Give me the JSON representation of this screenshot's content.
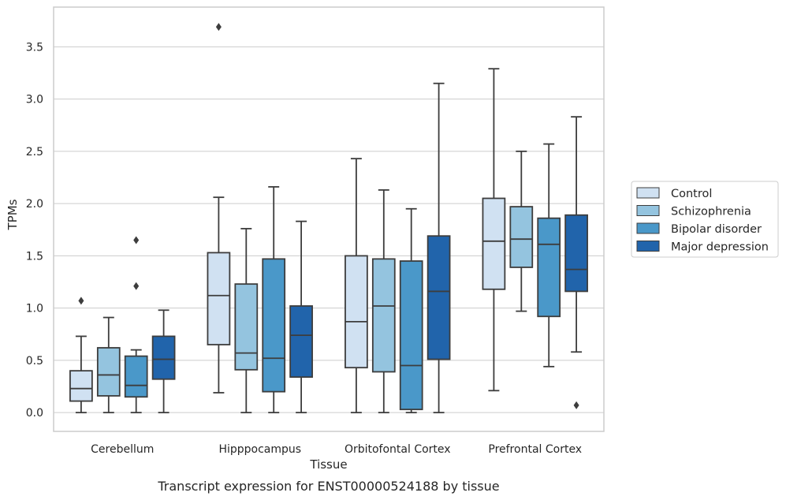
{
  "caption": "Transcript expression for ENST00000524188 by tissue",
  "chart_data": {
    "type": "box",
    "xlabel": "Tissue",
    "ylabel": "TPMs",
    "ylim": [
      -0.18,
      3.88
    ],
    "yticks": [
      "0.0",
      "0.5",
      "1.0",
      "1.5",
      "2.0",
      "2.5",
      "3.0",
      "3.5"
    ],
    "grid": "horizontal",
    "legend_position": "right",
    "categories": [
      "Cerebellum",
      "Hipppocampus",
      "Orbitofontal Cortex",
      "Prefrontal Cortex"
    ],
    "series": [
      {
        "name": "Control",
        "color": "#d0e1f2",
        "boxes": [
          {
            "whisker_low": 0.0,
            "q1": 0.11,
            "median": 0.23,
            "q3": 0.4,
            "whisker_high": 0.73,
            "outliers": [
              1.07
            ]
          },
          {
            "whisker_low": 0.19,
            "q1": 0.65,
            "median": 1.12,
            "q3": 1.53,
            "whisker_high": 2.06,
            "outliers": [
              3.69
            ]
          },
          {
            "whisker_low": 0.0,
            "q1": 0.43,
            "median": 0.87,
            "q3": 1.5,
            "whisker_high": 2.43,
            "outliers": []
          },
          {
            "whisker_low": 0.21,
            "q1": 1.18,
            "median": 1.64,
            "q3": 2.05,
            "whisker_high": 3.29,
            "outliers": []
          }
        ]
      },
      {
        "name": "Schizophrenia",
        "color": "#94c4df",
        "boxes": [
          {
            "whisker_low": 0.0,
            "q1": 0.16,
            "median": 0.36,
            "q3": 0.62,
            "whisker_high": 0.91,
            "outliers": []
          },
          {
            "whisker_low": 0.0,
            "q1": 0.41,
            "median": 0.57,
            "q3": 1.23,
            "whisker_high": 1.76,
            "outliers": []
          },
          {
            "whisker_low": 0.0,
            "q1": 0.39,
            "median": 1.02,
            "q3": 1.47,
            "whisker_high": 2.13,
            "outliers": []
          },
          {
            "whisker_low": 0.97,
            "q1": 1.39,
            "median": 1.66,
            "q3": 1.97,
            "whisker_high": 2.5,
            "outliers": []
          }
        ]
      },
      {
        "name": "Bipolar disorder",
        "color": "#4a98c9",
        "boxes": [
          {
            "whisker_low": 0.0,
            "q1": 0.15,
            "median": 0.26,
            "q3": 0.54,
            "whisker_high": 0.6,
            "outliers": [
              1.21,
              1.65
            ]
          },
          {
            "whisker_low": 0.0,
            "q1": 0.2,
            "median": 0.52,
            "q3": 1.47,
            "whisker_high": 2.16,
            "outliers": []
          },
          {
            "whisker_low": 0.0,
            "q1": 0.03,
            "median": 0.45,
            "q3": 1.45,
            "whisker_high": 1.95,
            "outliers": []
          },
          {
            "whisker_low": 0.44,
            "q1": 0.92,
            "median": 1.61,
            "q3": 1.86,
            "whisker_high": 2.57,
            "outliers": []
          }
        ]
      },
      {
        "name": "Major depression",
        "color": "#2164ab",
        "boxes": [
          {
            "whisker_low": 0.0,
            "q1": 0.32,
            "median": 0.51,
            "q3": 0.73,
            "whisker_high": 0.98,
            "outliers": []
          },
          {
            "whisker_low": 0.0,
            "q1": 0.34,
            "median": 0.74,
            "q3": 1.02,
            "whisker_high": 1.83,
            "outliers": []
          },
          {
            "whisker_low": 0.0,
            "q1": 0.51,
            "median": 1.16,
            "q3": 1.69,
            "whisker_high": 3.15,
            "outliers": []
          },
          {
            "whisker_low": 0.58,
            "q1": 1.16,
            "median": 1.37,
            "q3": 1.89,
            "whisker_high": 2.83,
            "outliers": [
              0.07
            ]
          }
        ]
      }
    ]
  }
}
